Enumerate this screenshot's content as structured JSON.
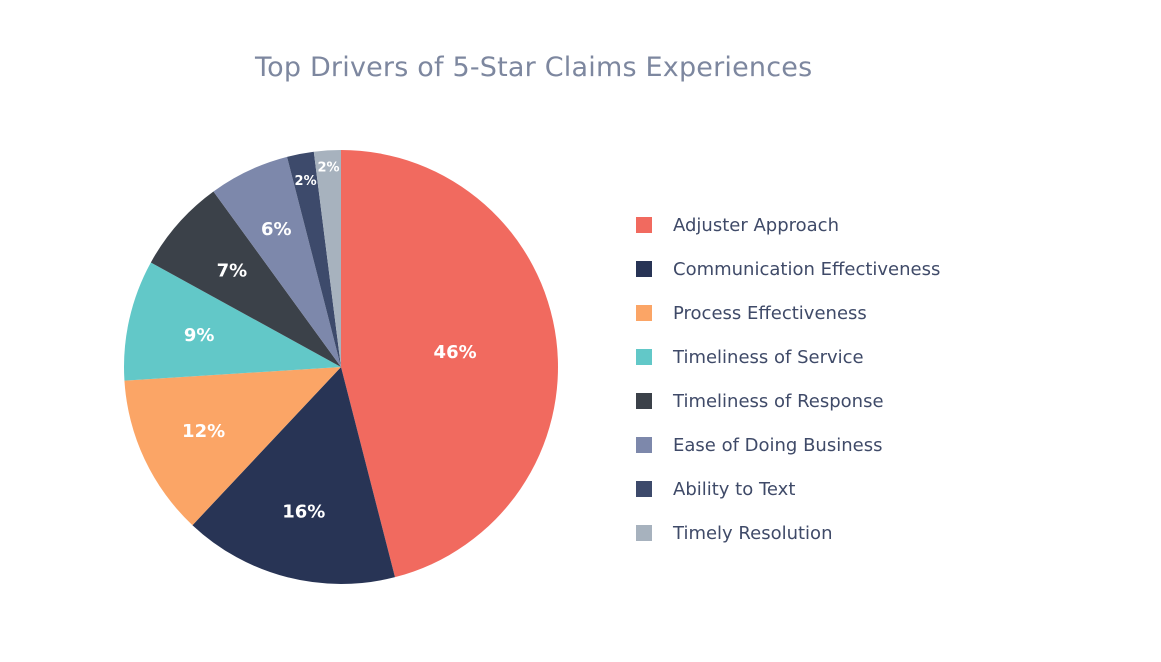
{
  "chart_data": {
    "type": "pie",
    "title": "Top Drivers of 5-Star Claims Experiences",
    "categories": [
      "Adjuster Approach",
      "Communication Effectiveness",
      "Process Effectiveness",
      "Timeliness of Service",
      "Timeliness of Response",
      "Ease of Doing Business",
      "Ability to Text",
      "Timely Resolution"
    ],
    "values": [
      46,
      16,
      12,
      9,
      7,
      6,
      2,
      2
    ],
    "data_labels": [
      "46%",
      "16%",
      "12%",
      "9%",
      "7%",
      "6%",
      "2%",
      "2%"
    ],
    "colors": [
      "#f16a5f",
      "#283455",
      "#fba566",
      "#62c8c8",
      "#3b4149",
      "#7d88ab",
      "#3d4a6b",
      "#a7b2be"
    ],
    "legend_position": "right",
    "start_angle": "top, clockwise"
  }
}
